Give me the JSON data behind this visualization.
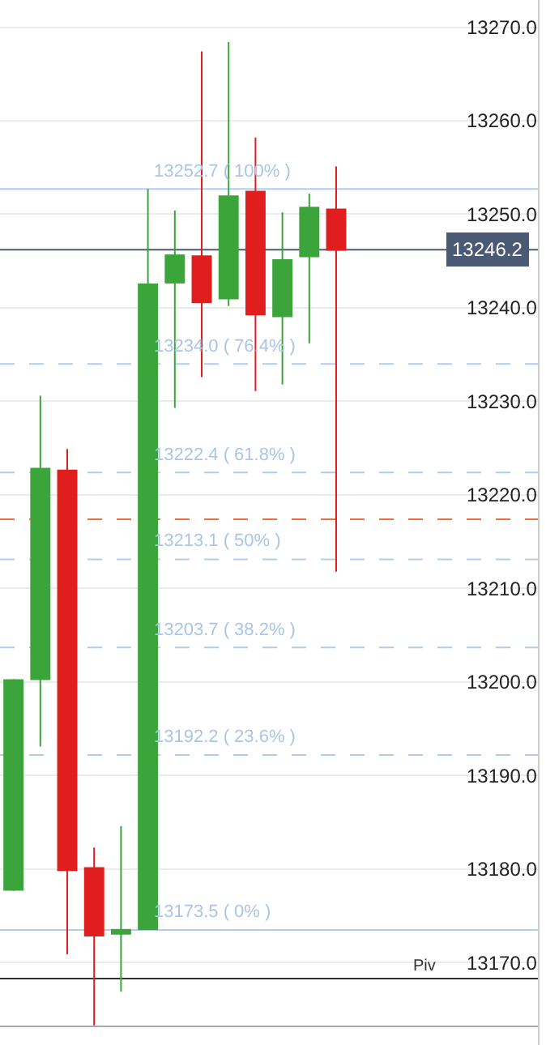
{
  "chart_data": {
    "type": "candlestick",
    "categories": [
      null,
      null,
      null,
      null,
      null,
      null,
      null,
      null,
      null,
      null,
      null,
      null,
      null,
      null,
      null,
      null,
      null,
      null,
      null,
      null
    ],
    "ohlc": [
      [
        13177.7,
        13200.3,
        13177.7,
        13200.3
      ],
      [
        13200.2,
        13230.6,
        13193.1,
        13222.9
      ],
      [
        13222.7,
        13224.9,
        13170.9,
        13179.8
      ],
      [
        13180.2,
        13182.3,
        13163.3,
        13172.8
      ],
      [
        13173.0,
        13184.6,
        13166.9,
        13173.6
      ],
      [
        13173.5,
        13252.7,
        13173.5,
        13242.6
      ],
      [
        13242.6,
        13250.4,
        13229.3,
        13245.7
      ],
      [
        13245.6,
        13267.4,
        13232.6,
        13240.5
      ],
      [
        13240.9,
        13268.4,
        13240.2,
        13252.0
      ],
      [
        13252.5,
        13258.2,
        13231.1,
        13239.2
      ],
      [
        13239.0,
        13250.2,
        13231.8,
        13245.2
      ],
      [
        13245.4,
        13252.2,
        13236.2,
        13250.8
      ],
      [
        13250.6,
        13255.1,
        13211.8,
        13246.1
      ],
      null,
      null,
      null,
      null,
      null,
      null,
      null
    ],
    "colors": [
      "#3ba53b",
      "#3ba53b",
      "#e01e1e",
      "#e01e1e",
      "#3ba53b",
      "#3ba53b",
      "#3ba53b",
      "#e01e1e",
      "#3ba53b",
      "#e01e1e",
      "#3ba53b",
      "#3ba53b",
      "#e01e1e",
      null,
      null,
      null,
      null,
      null,
      null,
      null
    ],
    "ylim": [
      13161.2,
      13272.9
    ],
    "yticks": [
      {
        "value": 13170,
        "label": "13170.0"
      },
      {
        "value": 13180,
        "label": "13180.0"
      },
      {
        "value": 13190,
        "label": "13190.0"
      },
      {
        "value": 13200,
        "label": "13200.0"
      },
      {
        "value": 13210,
        "label": "13210.0"
      },
      {
        "value": 13220,
        "label": "13220.0"
      },
      {
        "value": 13230,
        "label": "13230.0"
      },
      {
        "value": 13240,
        "label": "13240.0"
      },
      {
        "value": 13250,
        "label": "13250.0"
      },
      {
        "value": 13260,
        "label": "13260.0"
      },
      {
        "value": 13270,
        "label": "13270.0"
      }
    ],
    "tick_labels": "y",
    "grid": "y",
    "ref_lines": [
      {
        "axis": "y",
        "value": 13252.7,
        "label": "13252.7 ( 100% )",
        "color": "#b4cce6",
        "line_style": "solid"
      },
      {
        "axis": "y",
        "value": 13234.0,
        "label": "13234.0 ( 76.4% )",
        "color": "#b4cce6",
        "line_style": "dashed"
      },
      {
        "axis": "y",
        "value": 13222.4,
        "label": "13222.4 ( 61.8% )",
        "color": "#b4cce6",
        "line_style": "dashed"
      },
      {
        "axis": "y",
        "value": 13213.1,
        "label": "13213.1 ( 50% )",
        "color": "#b4cce6",
        "line_style": "dashed"
      },
      {
        "axis": "y",
        "value": 13203.7,
        "label": "13203.7 ( 38.2% )",
        "color": "#b4cce6",
        "line_style": "dashed"
      },
      {
        "axis": "y",
        "value": 13192.2,
        "label": "13192.2 ( 23.6% )",
        "color": "#b4cce6",
        "line_style": "dashed"
      },
      {
        "axis": "y",
        "value": 13173.5,
        "label": "13173.5 ( 0% )",
        "color": "#b4cce6",
        "line_style": "solid"
      },
      {
        "axis": "y",
        "value": 13246.2,
        "label": "13246.2",
        "color": "#4a5a75",
        "line_style": "solid"
      },
      {
        "axis": "y",
        "value": 13217.4,
        "color": "#f26b3a",
        "line_style": "dashed"
      },
      {
        "axis": "y",
        "value": 13168.3,
        "label": "Piv",
        "color": "#333333",
        "line_style": "solid"
      },
      {
        "axis": "y",
        "value": 13163.2,
        "color": "#aaaaaa",
        "line_style": "solid"
      }
    ]
  }
}
